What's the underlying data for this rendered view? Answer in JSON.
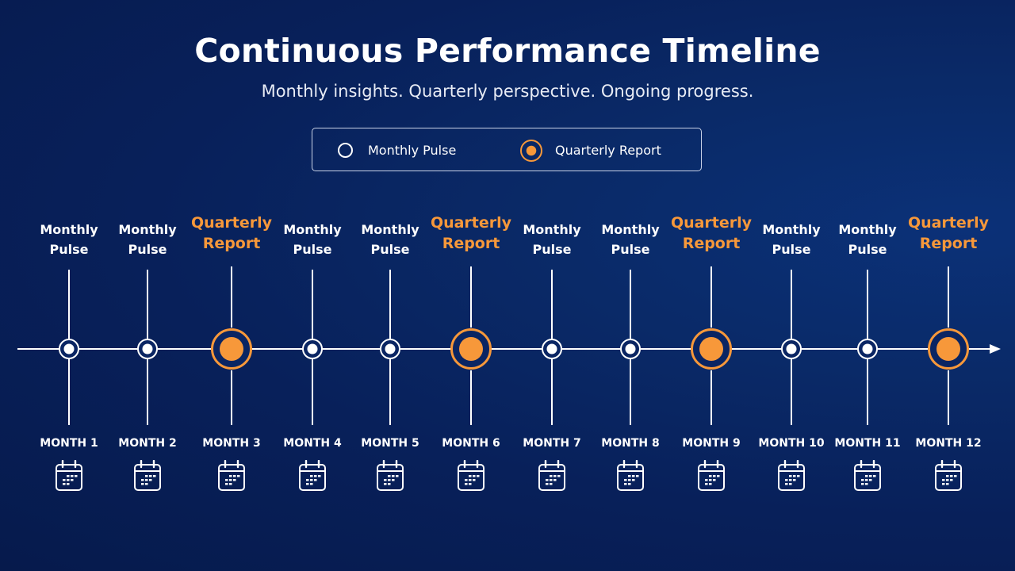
{
  "title": "Continuous Performance Timeline",
  "subtitle": "Monthly insights. Quarterly perspective. Ongoing progress.",
  "legend": {
    "monthly": "Monthly Pulse",
    "quarterly": "Quarterly Report"
  },
  "colors": {
    "accent": "#f7983a",
    "line": "#ffffff",
    "background": "#08205a"
  },
  "icons": {
    "month": "calendar-icon",
    "axis_end": "arrow-right-icon"
  },
  "months": [
    {
      "label": "MONTH 1",
      "event": [
        "Monthly",
        "Pulse"
      ],
      "kind": "monthly"
    },
    {
      "label": "MONTH 2",
      "event": [
        "Monthly",
        "Pulse"
      ],
      "kind": "monthly"
    },
    {
      "label": "MONTH 3",
      "event": [
        "Quarterly",
        "Report"
      ],
      "kind": "quarterly"
    },
    {
      "label": "MONTH 4",
      "event": [
        "Monthly",
        "Pulse"
      ],
      "kind": "monthly"
    },
    {
      "label": "MONTH 5",
      "event": [
        "Monthly",
        "Pulse"
      ],
      "kind": "monthly"
    },
    {
      "label": "MONTH 6",
      "event": [
        "Quarterly",
        "Report"
      ],
      "kind": "quarterly"
    },
    {
      "label": "MONTH 7",
      "event": [
        "Monthly",
        "Pulse"
      ],
      "kind": "monthly"
    },
    {
      "label": "MONTH 8",
      "event": [
        "Monthly",
        "Pulse"
      ],
      "kind": "monthly"
    },
    {
      "label": "MONTH 9",
      "event": [
        "Quarterly",
        "Report"
      ],
      "kind": "quarterly"
    },
    {
      "label": "MONTH 10",
      "event": [
        "Monthly",
        "Pulse"
      ],
      "kind": "monthly"
    },
    {
      "label": "MONTH 11",
      "event": [
        "Monthly",
        "Pulse"
      ],
      "kind": "monthly"
    },
    {
      "label": "MONTH 12",
      "event": [
        "Quarterly",
        "Report"
      ],
      "kind": "quarterly"
    }
  ]
}
